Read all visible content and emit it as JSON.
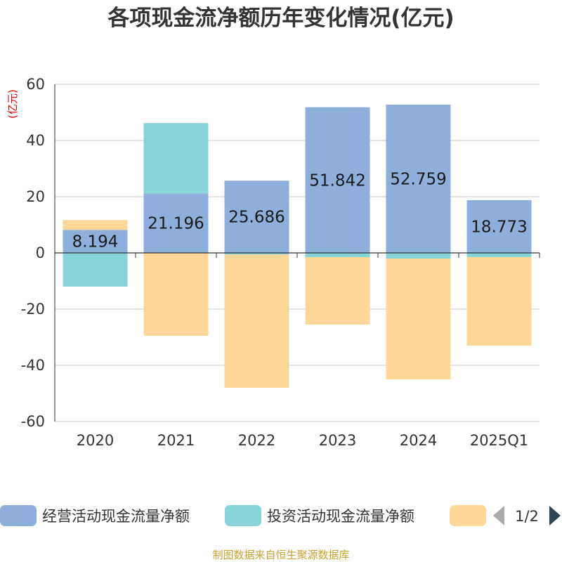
{
  "chart_data": {
    "type": "bar",
    "stacked": true,
    "title": "各项现金流净额历年变化情况(亿元)",
    "unit_label": "(亿元)",
    "categories": [
      "2020",
      "2021",
      "2022",
      "2023",
      "2024",
      "2025Q1"
    ],
    "ylim": [
      -60,
      60
    ],
    "yticks": [
      -60,
      -40,
      -20,
      0,
      20,
      40,
      60
    ],
    "grid": true,
    "series": [
      {
        "name": "经营活动现金流量净额",
        "color": "#8eaedb",
        "values": [
          8.194,
          21.196,
          25.686,
          51.842,
          52.759,
          18.773
        ],
        "labels": [
          "8.194",
          "21.196",
          "25.686",
          "51.842",
          "52.759",
          "18.773"
        ]
      },
      {
        "name": "投资活动现金流量净额",
        "color": "#87d5d8",
        "values": [
          -12.0,
          25.0,
          -0.6,
          -1.5,
          -2.0,
          -1.5
        ]
      },
      {
        "name": "",
        "color": "#ffd899",
        "values": [
          3.5,
          -29.5,
          -47.4,
          -24.0,
          -43.0,
          -31.5
        ]
      }
    ],
    "legend": {
      "position": "bottom",
      "page": "1/2"
    },
    "source": "制图数据来自恒生聚源数据库"
  }
}
